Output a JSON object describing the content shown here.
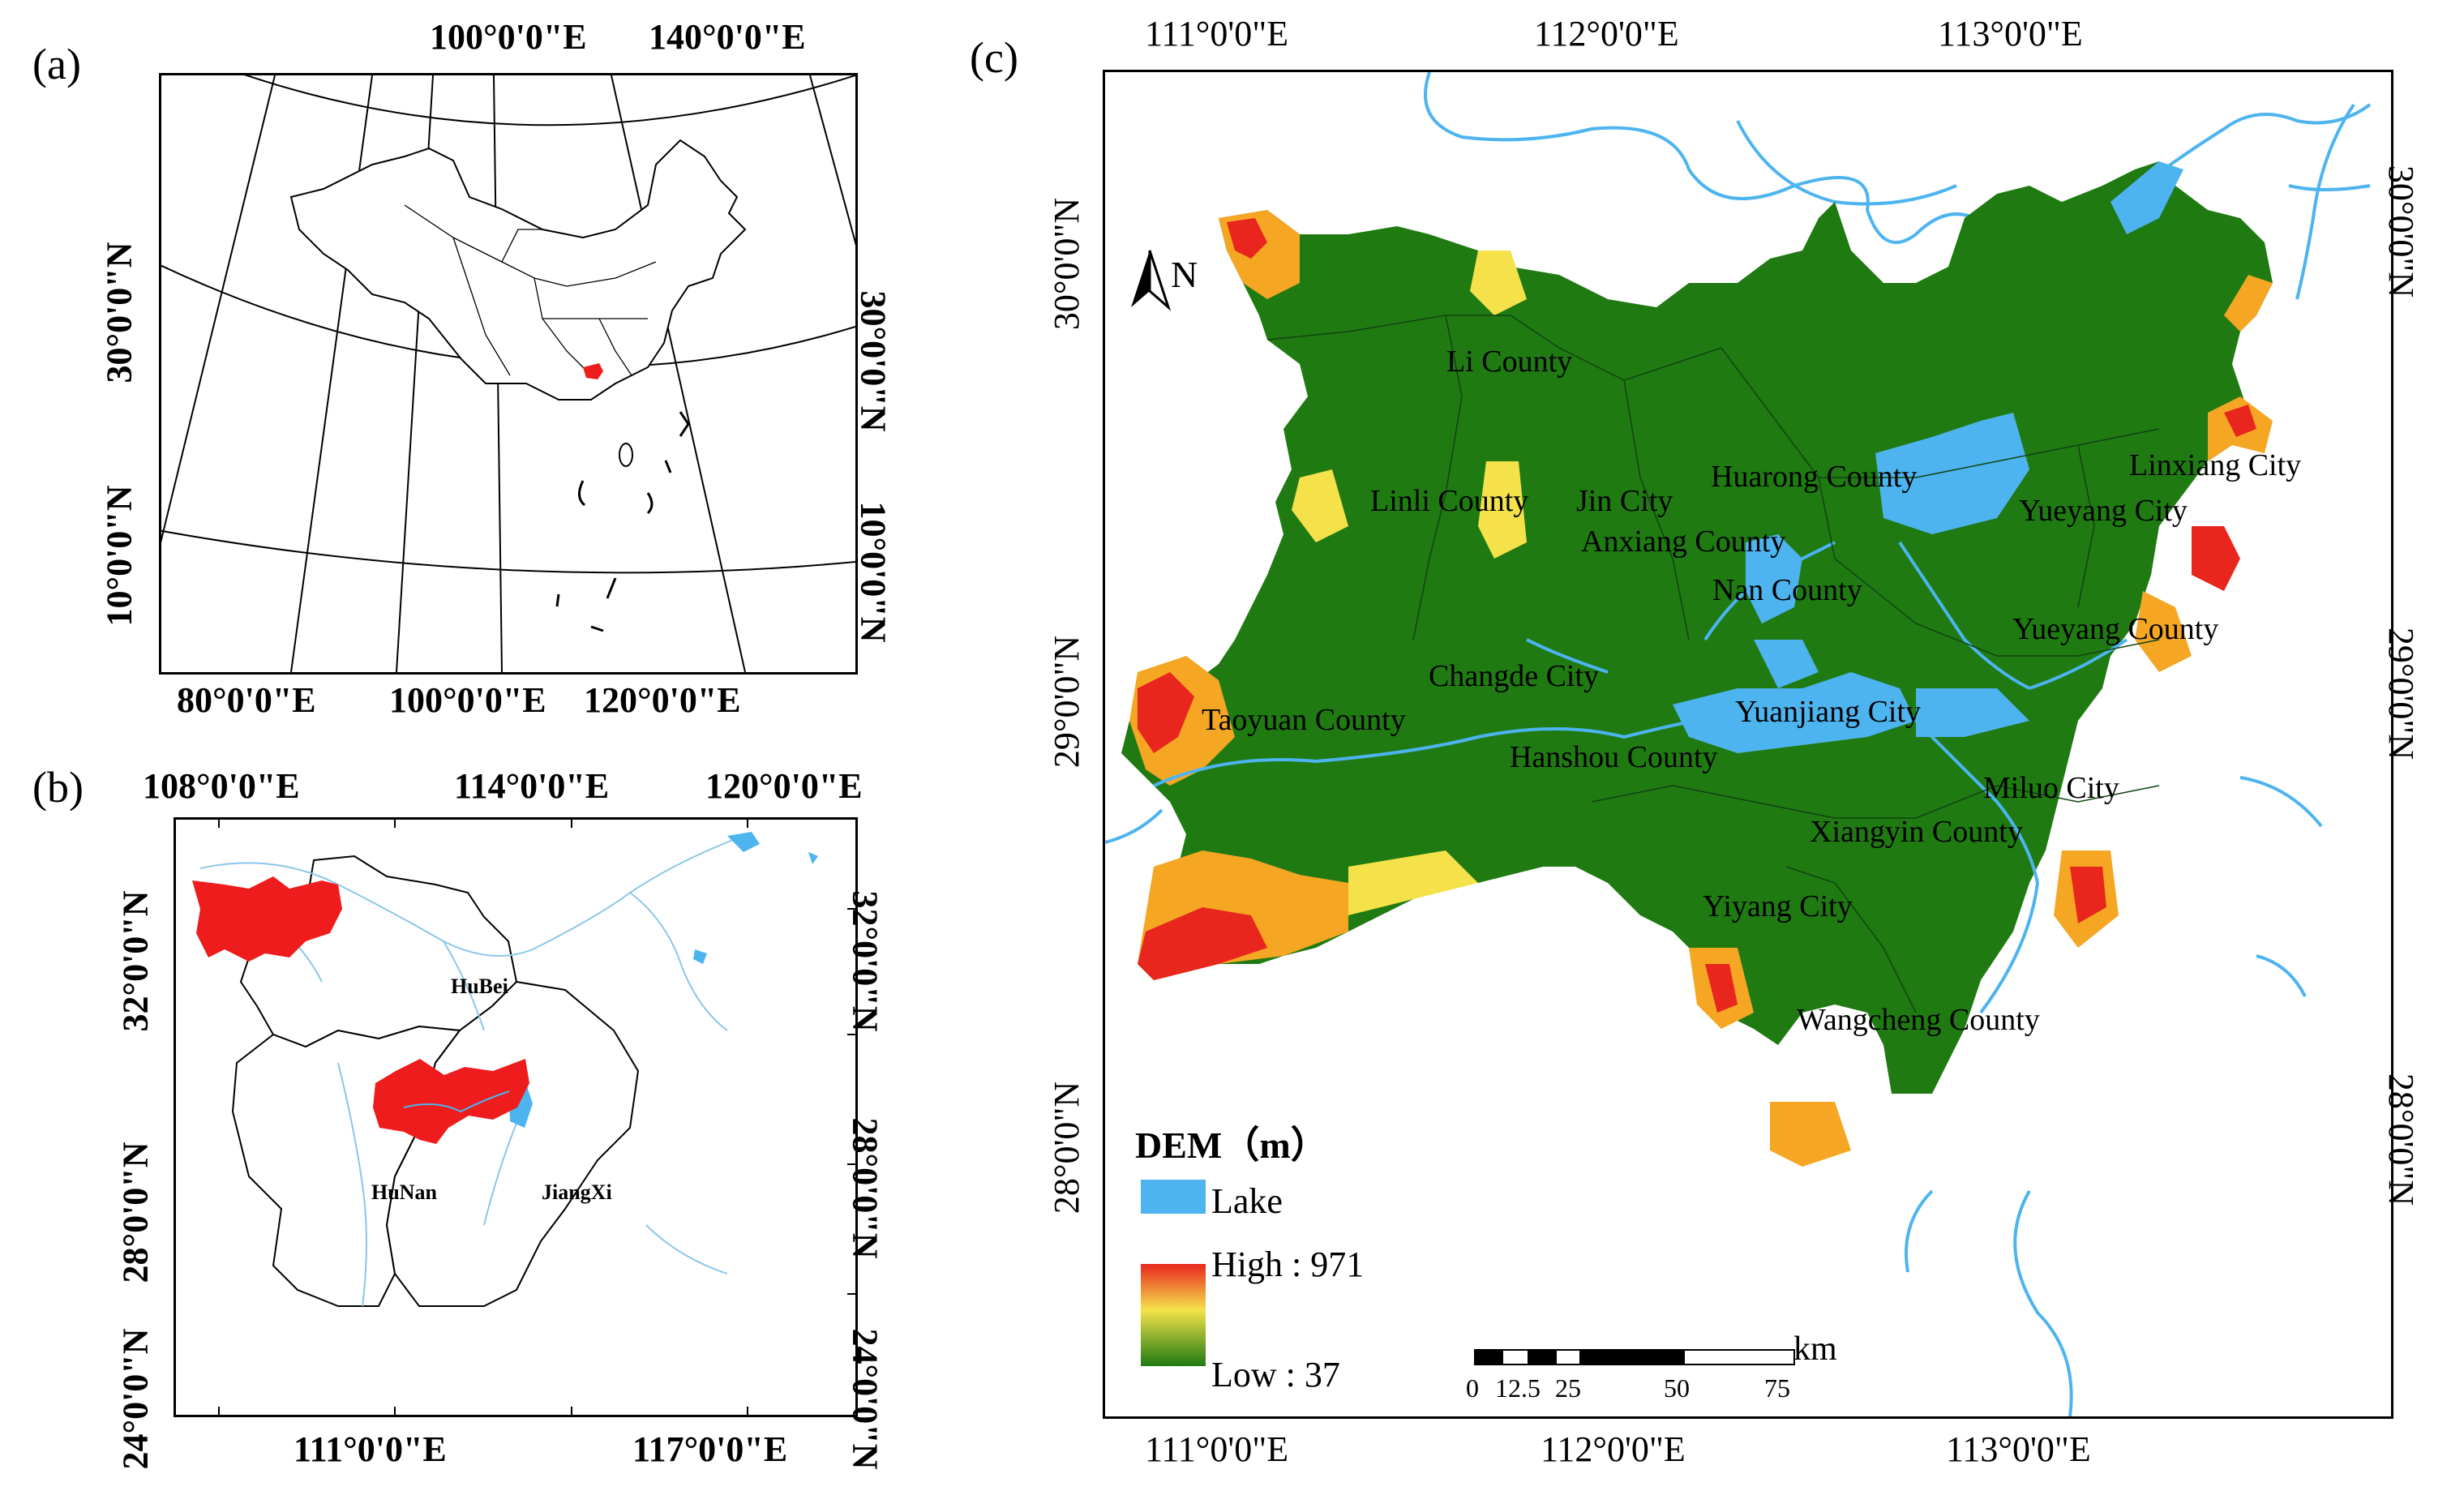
{
  "panels": {
    "a": {
      "letter": "(a)",
      "top_ticks": [
        "100°0'0\"E",
        "140°0'0\"E"
      ],
      "bottom_ticks": [
        "80°0'0\"E",
        "100°0'0\"E",
        "120°0'0\"E"
      ],
      "left_ticks": [
        "30°0'0\"N",
        "10°0'0\"N"
      ],
      "right_ticks": [
        "30°0'0\"N",
        "10°0'0\"N"
      ]
    },
    "b": {
      "letter": "(b)",
      "top_ticks": [
        "108°0'0\"E",
        "114°0'0\"E",
        "120°0'0\"E"
      ],
      "bottom_ticks": [
        "111°0'0\"E",
        "117°0'0\"E"
      ],
      "left_ticks": [
        "32°0'0\"N",
        "28°0'0\"N",
        "24°0'0\"N"
      ],
      "right_ticks": [
        "32°0'0\"N",
        "28°0'0\"N",
        "24°0'0\"N"
      ],
      "regions": [
        "HuBei",
        "HuNan",
        "JiangXi"
      ]
    },
    "c": {
      "letter": "(c)",
      "top_ticks": [
        "111°0'0\"E",
        "112°0'0\"E",
        "113°0'0\"E"
      ],
      "bottom_ticks": [
        "111°0'0\"E",
        "112°0'0\"E",
        "113°0'0\"E"
      ],
      "left_ticks": [
        "30°0'0\"N",
        "29°0'0\"N",
        "28°0'0\"N"
      ],
      "right_ticks": [
        "30°0'0\"N",
        "29°0'0\"N",
        "28°0'0\"N"
      ],
      "north_label": "N",
      "cities": [
        "Li County",
        "Linli County",
        "Jin City",
        "Huarong County",
        "Anxiang County",
        "Nan County",
        "Yueyang City",
        "Linxiang City",
        "Yueyang County",
        "Changde City",
        "Taoyuan County",
        "Yuanjiang City",
        "Hanshou County",
        "Miluo City",
        "Xiangyin County",
        "Yiyang City",
        "Wangcheng County"
      ],
      "legend": {
        "title": "DEM（m）",
        "lake_label": "Lake",
        "high_label": "High : 971",
        "low_label": "Low : 37",
        "lake_color": "#4db4f0",
        "high_color": "#e8261e",
        "mid_color": "#f5e24a",
        "low_color": "#1f7a12"
      },
      "scale_bar": {
        "unit": "km",
        "labels": [
          "0",
          "12.5",
          "25",
          "50",
          "75"
        ]
      }
    }
  }
}
